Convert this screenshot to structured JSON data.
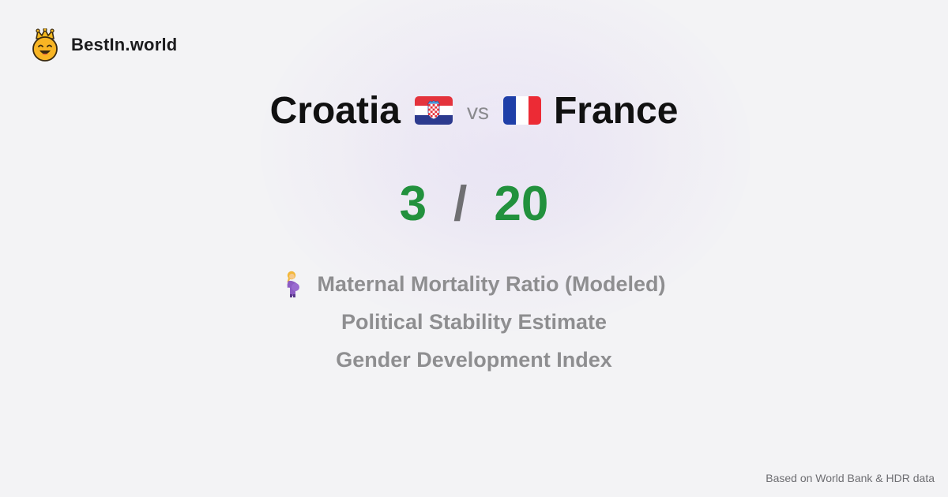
{
  "brand": {
    "name": "BestIn.world",
    "logo_icon": "crowned-smiley-icon"
  },
  "comparison": {
    "left_country": "Croatia",
    "left_flag": "croatia-flag-icon",
    "vs_label": "vs",
    "right_country": "France",
    "right_flag": "france-flag-icon"
  },
  "score": {
    "left": "3",
    "separator": "/",
    "right": "20",
    "color": "#22913d"
  },
  "metrics": [
    {
      "icon": "pregnant-woman-icon",
      "label": "Maternal Mortality Ratio (Modeled)"
    },
    {
      "label": "Political Stability Estimate"
    },
    {
      "label": "Gender Development Index"
    }
  ],
  "footer": {
    "source": "Based on World Bank & HDR data"
  }
}
